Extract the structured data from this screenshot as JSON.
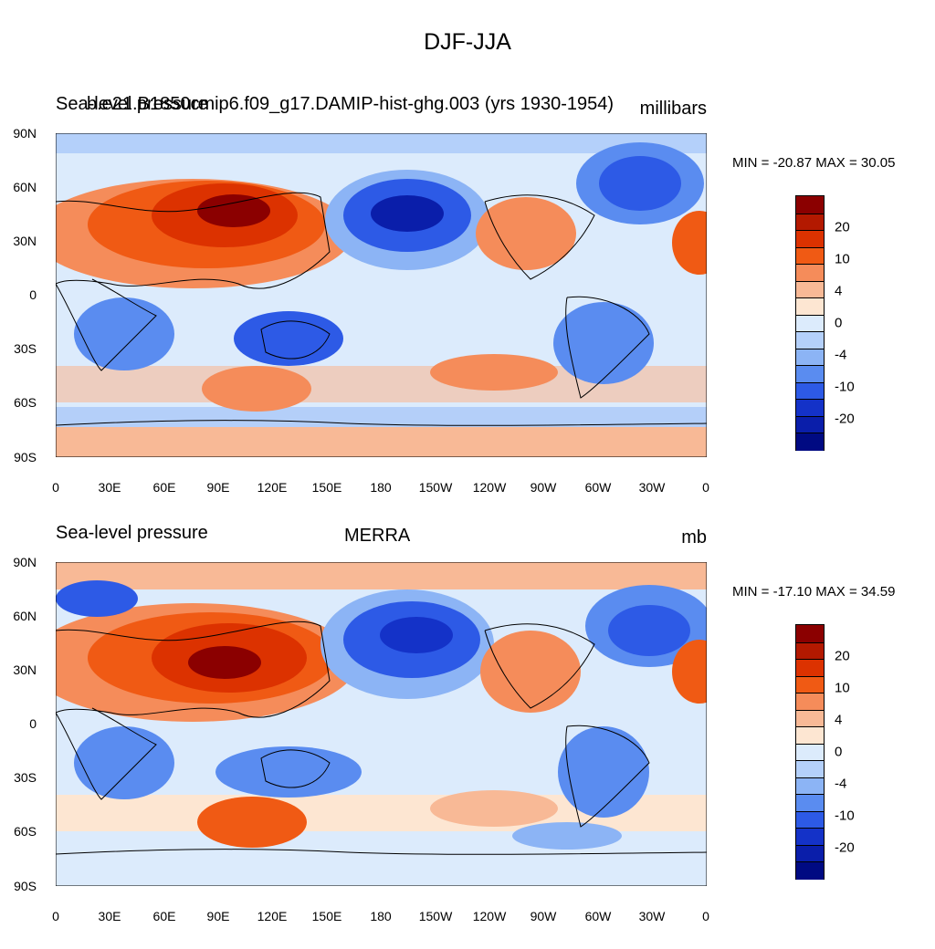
{
  "title": "DJF-JJA",
  "panels": [
    {
      "left_label": "Sea-level pressure",
      "center_label": "b.e21.B1850cmip6.f09_g17.DAMIP-hist-ghg.003 (yrs 1930-1954)",
      "right_label": "millibars",
      "minmax": "MIN = -20.87 MAX =  30.05"
    },
    {
      "left_label": "Sea-level pressure",
      "center_label": "MERRA",
      "right_label": "mb",
      "minmax": "MIN = -17.10 MAX =  34.59"
    }
  ],
  "lat_ticks": [
    "90N",
    "60N",
    "30N",
    "0",
    "30S",
    "60S",
    "90S"
  ],
  "lon_ticks": [
    "0",
    "30E",
    "60E",
    "90E",
    "120E",
    "150E",
    "180",
    "150W",
    "120W",
    "90W",
    "60W",
    "30W",
    "0"
  ],
  "colorbar": {
    "labels": [
      "20",
      "10",
      "4",
      "0",
      "-4",
      "-10",
      "-20"
    ],
    "colors": [
      "#8b0000",
      "#b31900",
      "#dc3200",
      "#f05a14",
      "#f58c5a",
      "#f8b996",
      "#fde6d2",
      "#dcebfc",
      "#b4d0fa",
      "#8cb4f5",
      "#5a8cf0",
      "#2d5ae6",
      "#1432c8",
      "#0a1eaa",
      "#000a82"
    ]
  },
  "colors": {
    "ocean_neutral": "#dcebfc",
    "positive": "#f05a14",
    "negative": "#2d5ae6"
  }
}
